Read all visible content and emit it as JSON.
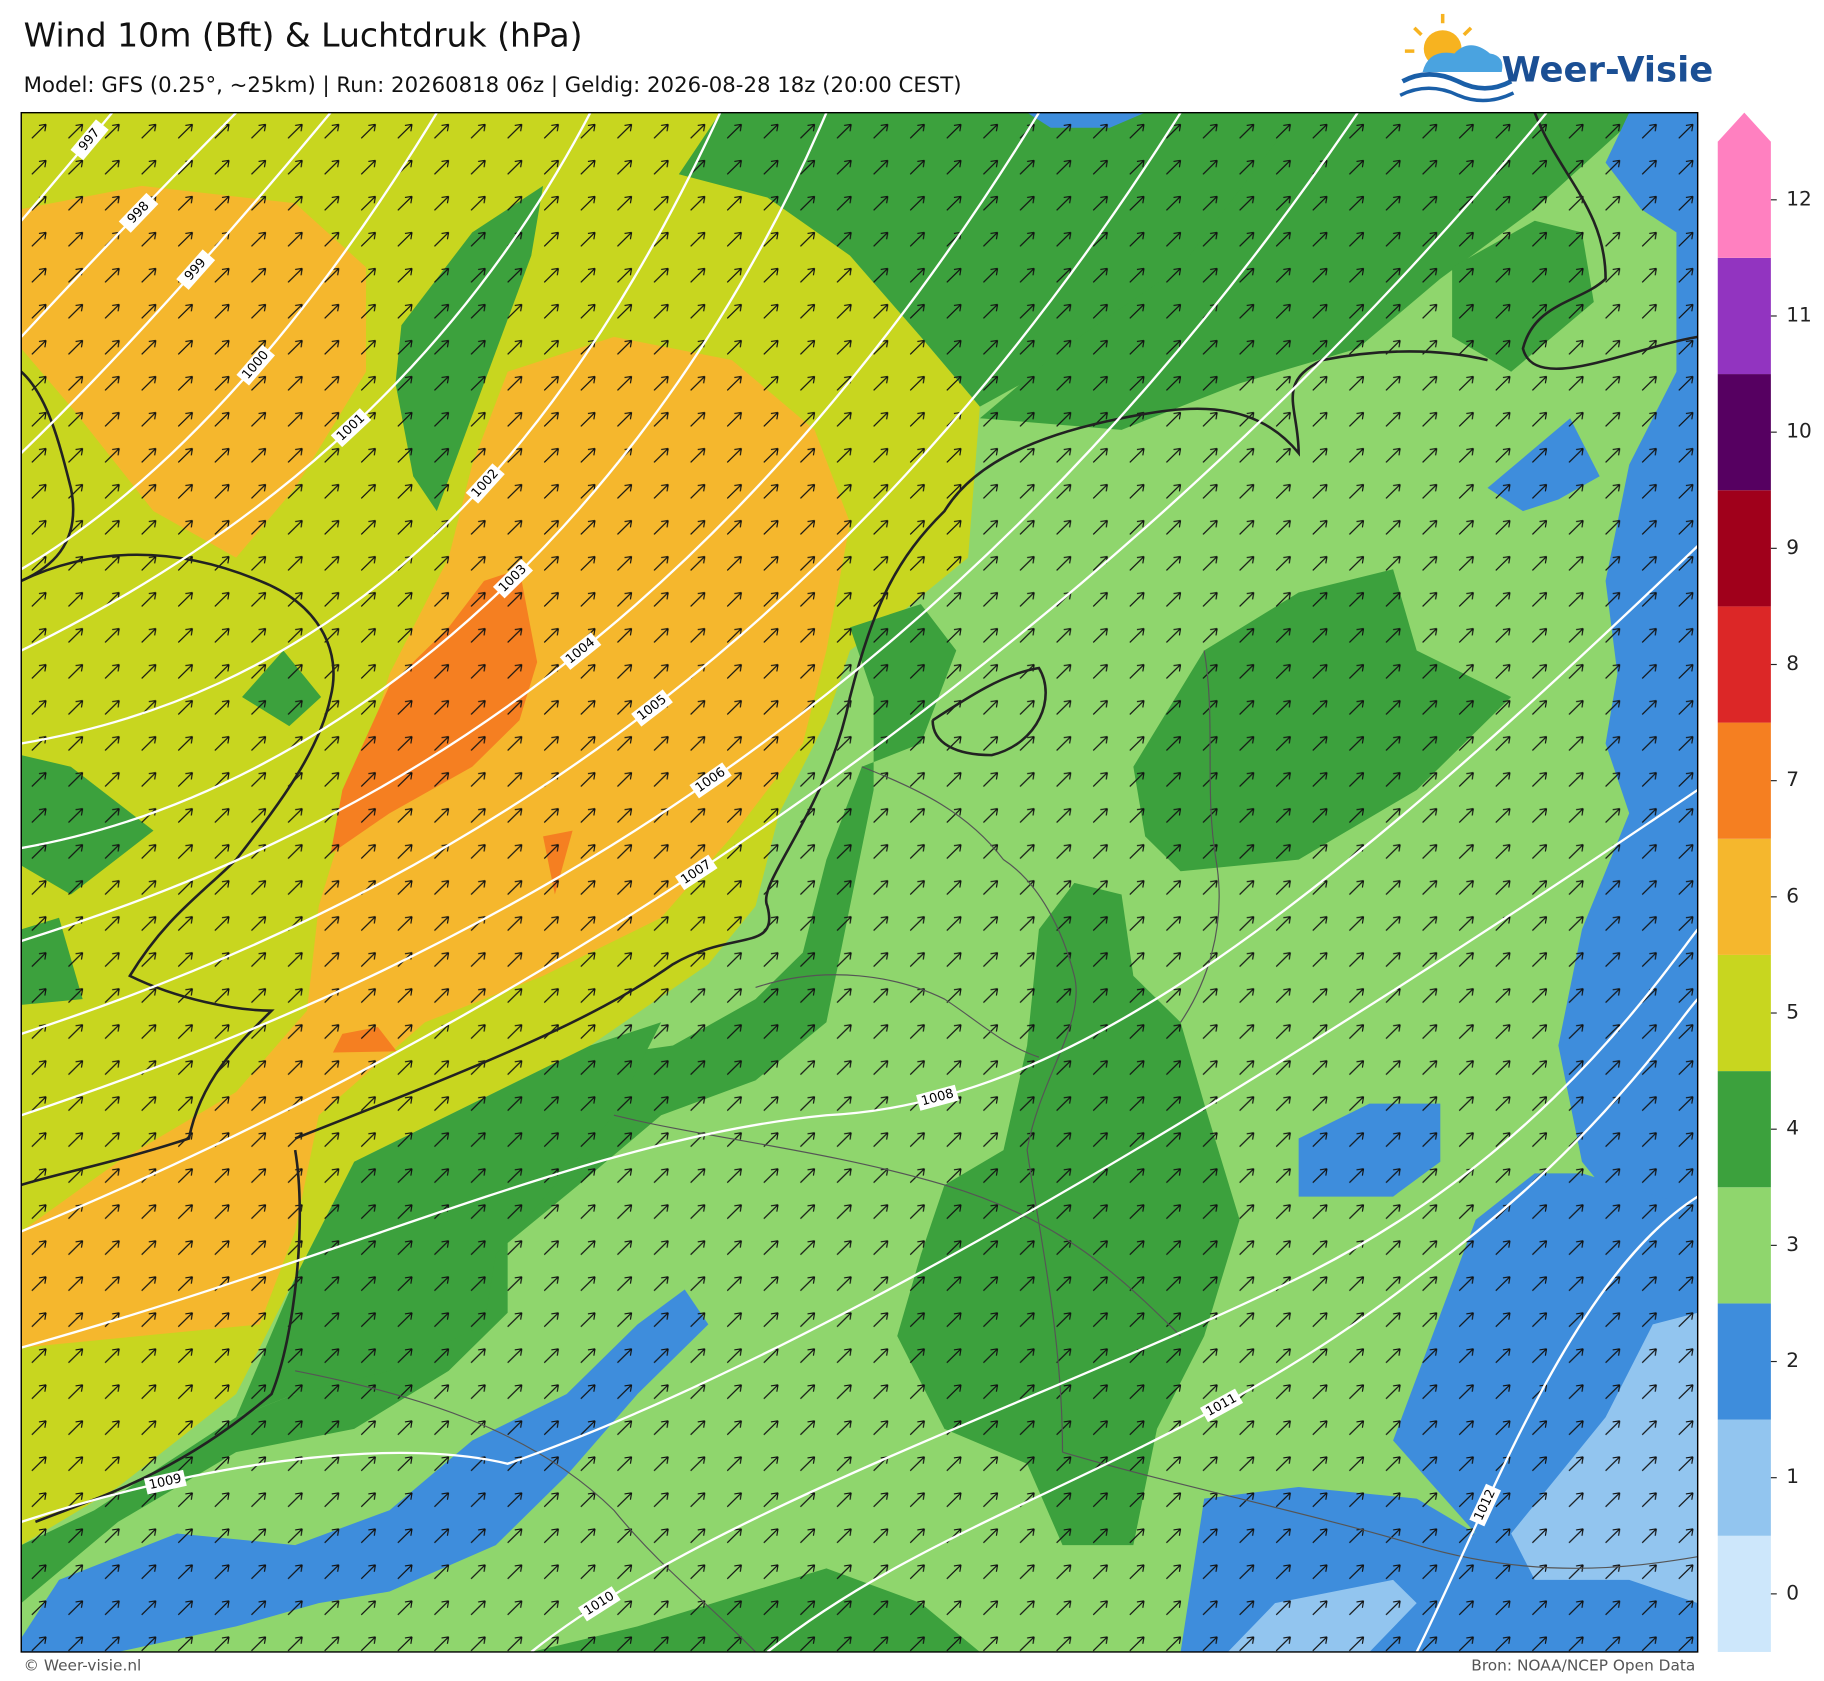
{
  "header": {
    "title": "Wind 10m (Bft) & Luchtdruk (hPa)",
    "subtitle": "Model: GFS (0.25°, ~25km)  |  Run: 20260818 06z  |  Geldig: 2026-08-28 18z (20:00 CEST)",
    "logo": "Weer-Visie"
  },
  "colorbar": {
    "levels": [
      0,
      1,
      2,
      3,
      4,
      5,
      6,
      7,
      8,
      9,
      10,
      11,
      12
    ],
    "colors": [
      "#cde7fb",
      "#92c5ef",
      "#3e8ddc",
      "#8fd66d",
      "#3ca13d",
      "#c8d61f",
      "#f5b72d",
      "#f57f21",
      "#dc2727",
      "#a0001b",
      "#560061",
      "#9234c0",
      "#ff80c0"
    ]
  },
  "isobars": [
    997,
    998,
    999,
    1000,
    1001,
    1002,
    1003,
    1004,
    1005,
    1006,
    1007,
    1008,
    1009,
    1010,
    1011,
    1012
  ],
  "footer": {
    "left": "© Weer-visie.nl",
    "right": "Bron: NOAA/NCEP Open Data"
  }
}
